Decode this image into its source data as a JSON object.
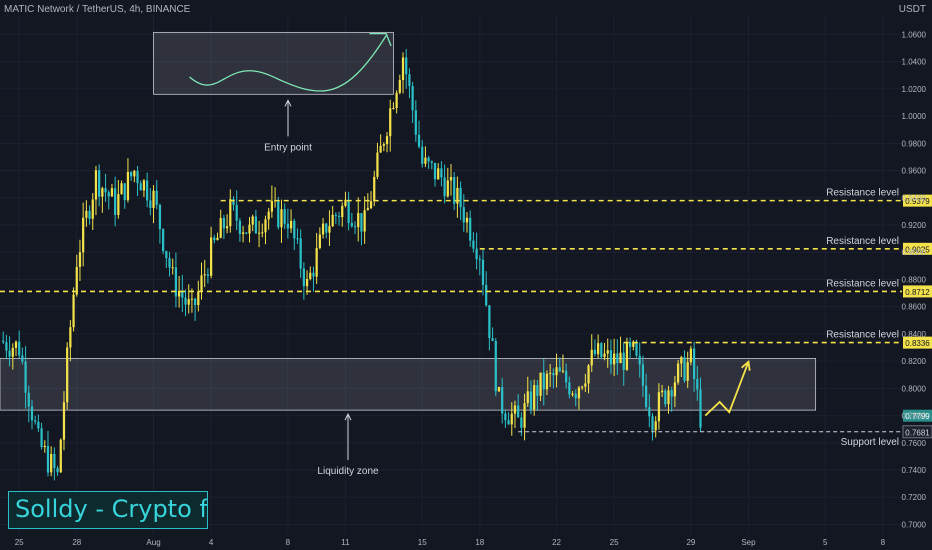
{
  "header": {
    "symbol_line": "MATIC Network / TetherUS, 4h, BINANCE",
    "currency": "USDT"
  },
  "brand": {
    "text": "Solldy - Crypto for U"
  },
  "colors": {
    "bull": "#f4e24a",
    "bear": "#2bc0c8",
    "level_line": "#f4e24a",
    "support_line": "#d1d4dc",
    "background": "#131722",
    "zone": "#9598a1"
  },
  "chart_data": {
    "type": "candlestick",
    "yaxis": {
      "ylim": [
        0.693,
        1.075
      ],
      "ticks": [
        "1.0600",
        "1.0400",
        "1.0200",
        "1.0000",
        "0.9800",
        "0.9600",
        "0.9400",
        "0.9200",
        "0.9000",
        "0.8800",
        "0.8600",
        "0.8400",
        "0.8200",
        "0.8000",
        "0.7800",
        "0.7600",
        "0.7400",
        "0.7200",
        "0.7000"
      ]
    },
    "xaxis": {
      "date_range": [
        "2021-07-24",
        "2021-09-09"
      ],
      "ticks": [
        {
          "label": "25",
          "date": "2021-07-25"
        },
        {
          "label": "28",
          "date": "2021-07-28"
        },
        {
          "label": "Aug",
          "date": "2021-08-01"
        },
        {
          "label": "4",
          "date": "2021-08-04"
        },
        {
          "label": "8",
          "date": "2021-08-08"
        },
        {
          "label": "11",
          "date": "2021-08-11"
        },
        {
          "label": "15",
          "date": "2021-08-15"
        },
        {
          "label": "18",
          "date": "2021-08-18"
        },
        {
          "label": "22",
          "date": "2021-08-22"
        },
        {
          "label": "25",
          "date": "2021-08-25"
        },
        {
          "label": "29",
          "date": "2021-08-29"
        },
        {
          "label": "Sep",
          "date": "2021-09-01"
        },
        {
          "label": "5",
          "date": "2021-09-05"
        },
        {
          "label": "8",
          "date": "2021-09-08"
        }
      ]
    },
    "price_path": [
      {
        "date": "2021-07-24",
        "price": 0.835
      },
      {
        "date": "2021-07-25",
        "price": 0.83
      },
      {
        "date": "2021-07-26",
        "price": 0.76
      },
      {
        "date": "2021-07-27",
        "price": 0.735
      },
      {
        "date": "2021-07-27T12:00",
        "price": 0.82
      },
      {
        "date": "2021-07-28",
        "price": 0.895
      },
      {
        "date": "2021-07-29",
        "price": 0.955
      },
      {
        "date": "2021-07-30",
        "price": 0.935
      },
      {
        "date": "2021-07-31",
        "price": 0.96
      },
      {
        "date": "2021-08-01",
        "price": 0.94
      },
      {
        "date": "2021-08-02",
        "price": 0.88
      },
      {
        "date": "2021-08-03",
        "price": 0.855
      },
      {
        "date": "2021-08-04",
        "price": 0.9
      },
      {
        "date": "2021-08-05",
        "price": 0.93
      },
      {
        "date": "2021-08-06",
        "price": 0.915
      },
      {
        "date": "2021-08-07",
        "price": 0.93
      },
      {
        "date": "2021-08-08",
        "price": 0.925
      },
      {
        "date": "2021-08-09",
        "price": 0.875
      },
      {
        "date": "2021-08-10",
        "price": 0.92
      },
      {
        "date": "2021-08-11",
        "price": 0.935
      },
      {
        "date": "2021-08-12",
        "price": 0.92
      },
      {
        "date": "2021-08-13",
        "price": 0.985
      },
      {
        "date": "2021-08-14",
        "price": 1.045
      },
      {
        "date": "2021-08-15",
        "price": 0.965
      },
      {
        "date": "2021-08-16",
        "price": 0.955
      },
      {
        "date": "2021-08-17",
        "price": 0.935
      },
      {
        "date": "2021-08-18",
        "price": 0.9
      },
      {
        "date": "2021-08-19",
        "price": 0.79
      },
      {
        "date": "2021-08-20",
        "price": 0.775
      },
      {
        "date": "2021-08-21",
        "price": 0.8
      },
      {
        "date": "2021-08-22",
        "price": 0.81
      },
      {
        "date": "2021-08-23",
        "price": 0.8
      },
      {
        "date": "2021-08-24",
        "price": 0.825
      },
      {
        "date": "2021-08-25",
        "price": 0.82
      },
      {
        "date": "2021-08-26",
        "price": 0.825
      },
      {
        "date": "2021-08-27",
        "price": 0.78
      },
      {
        "date": "2021-08-28",
        "price": 0.805
      },
      {
        "date": "2021-08-29",
        "price": 0.82
      },
      {
        "date": "2021-08-29T12:00",
        "price": 0.78
      }
    ],
    "levels": [
      {
        "label": "Resistance level",
        "price": 0.9379,
        "price_label": "0.9379",
        "start_date": "2021-08-04T12:00"
      },
      {
        "label": "Resistance level",
        "price": 0.9025,
        "price_label": "0.9025",
        "start_date": "2021-08-18"
      },
      {
        "label": "Resistance level",
        "price": 0.8712,
        "price_label": "0.8712",
        "start_date": "2021-07-24"
      },
      {
        "label": "Resistance level",
        "price": 0.8336,
        "price_label": "0.8336",
        "start_date": "2021-08-25T12:00"
      },
      {
        "label": "Support level",
        "price": 0.7681,
        "price_label": "0.7681",
        "start_date": "2021-08-20",
        "style": "support"
      }
    ],
    "current_price": {
      "price": 0.7799,
      "label": "0.7799"
    },
    "liquidity_zone": {
      "label": "Liquidity zone",
      "price_top": 0.822,
      "price_bottom": 0.784,
      "end_date": "2021-09-04T12:00"
    },
    "entry_annotation": {
      "label": "Entry point",
      "box_start": "2021-08-01",
      "box_end": "2021-08-13T12:00",
      "price_top": 1.0615,
      "price_bottom": 1.016
    },
    "projection_arrow": [
      {
        "date": "2021-08-29T18:00",
        "price": 0.78
      },
      {
        "date": "2021-08-30T12:00",
        "price": 0.79
      },
      {
        "date": "2021-08-31",
        "price": 0.7825
      },
      {
        "date": "2021-09-01",
        "price": 0.8195
      }
    ]
  }
}
